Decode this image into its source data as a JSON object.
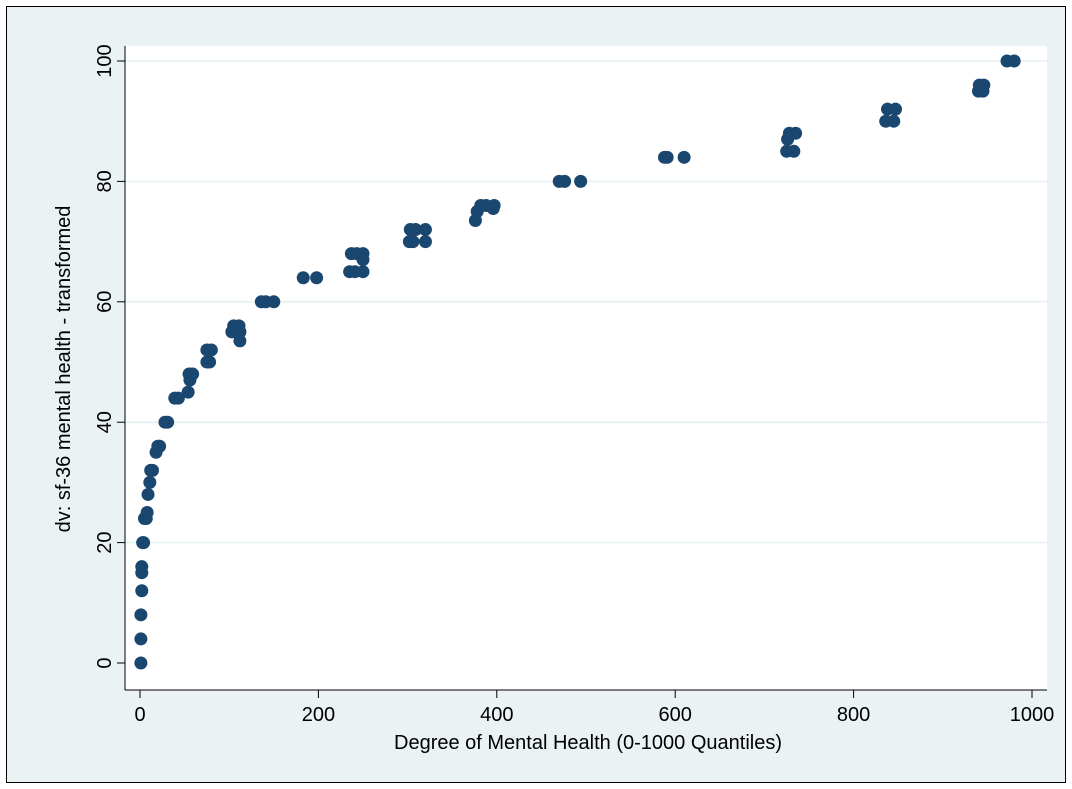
{
  "chart_data": {
    "type": "scatter",
    "title": "",
    "xlabel": "Degree of Mental Health (0-1000 Quantiles)",
    "ylabel": "dv: sf-36 mental health - transformed",
    "xlim": [
      0,
      1000
    ],
    "ylim": [
      0,
      100
    ],
    "xticks": [
      0,
      200,
      400,
      600,
      800,
      1000
    ],
    "yticks": [
      0,
      20,
      40,
      60,
      80,
      100
    ],
    "grid": "horizontal",
    "legend": "none",
    "colors": {
      "marker": "#1a476f",
      "plot_background": "#ffffff",
      "outer_background": "#eaf2f3",
      "grid": "#eaf2f3"
    },
    "series": [
      {
        "points": [
          [
            1,
            0
          ],
          [
            1,
            4
          ],
          [
            1,
            8
          ],
          [
            2,
            12
          ],
          [
            2,
            15
          ],
          [
            2,
            16
          ],
          [
            3,
            20
          ],
          [
            4,
            20
          ],
          [
            5,
            24
          ],
          [
            7,
            24
          ],
          [
            8,
            25
          ],
          [
            9,
            28
          ],
          [
            11,
            30
          ],
          [
            12,
            32
          ],
          [
            14,
            32
          ],
          [
            18,
            35
          ],
          [
            20,
            36
          ],
          [
            22,
            36
          ],
          [
            28,
            40
          ],
          [
            31,
            40
          ],
          [
            39,
            44
          ],
          [
            43,
            44
          ],
          [
            54,
            45
          ],
          [
            56,
            47
          ],
          [
            55,
            48
          ],
          [
            59,
            48
          ],
          [
            75,
            50
          ],
          [
            78,
            50
          ],
          [
            75,
            52
          ],
          [
            80,
            52
          ],
          [
            103,
            55
          ],
          [
            108,
            55
          ],
          [
            112,
            55
          ],
          [
            105,
            56
          ],
          [
            111,
            56
          ],
          [
            112,
            53.5
          ],
          [
            136,
            60
          ],
          [
            141,
            60
          ],
          [
            150,
            60
          ],
          [
            183,
            64
          ],
          [
            198,
            64
          ],
          [
            235,
            65
          ],
          [
            241,
            65
          ],
          [
            250,
            65
          ],
          [
            237,
            68
          ],
          [
            243,
            68
          ],
          [
            250,
            68
          ],
          [
            250,
            67
          ],
          [
            302,
            70
          ],
          [
            306,
            70
          ],
          [
            320,
            70
          ],
          [
            303,
            72
          ],
          [
            309,
            72
          ],
          [
            320,
            72
          ],
          [
            376,
            73.5
          ],
          [
            378,
            75
          ],
          [
            382,
            76
          ],
          [
            388,
            76
          ],
          [
            396,
            75.5
          ],
          [
            397,
            76
          ],
          [
            470,
            80
          ],
          [
            476,
            80
          ],
          [
            494,
            80
          ],
          [
            588,
            84
          ],
          [
            591,
            84
          ],
          [
            610,
            84
          ],
          [
            725,
            85
          ],
          [
            733,
            85
          ],
          [
            726,
            87
          ],
          [
            728,
            88
          ],
          [
            735,
            88
          ],
          [
            836,
            90
          ],
          [
            845,
            90
          ],
          [
            838,
            92
          ],
          [
            847,
            92
          ],
          [
            940,
            95
          ],
          [
            945,
            95
          ],
          [
            941,
            96
          ],
          [
            946,
            96
          ],
          [
            972,
            100
          ],
          [
            980,
            100
          ]
        ]
      }
    ]
  }
}
